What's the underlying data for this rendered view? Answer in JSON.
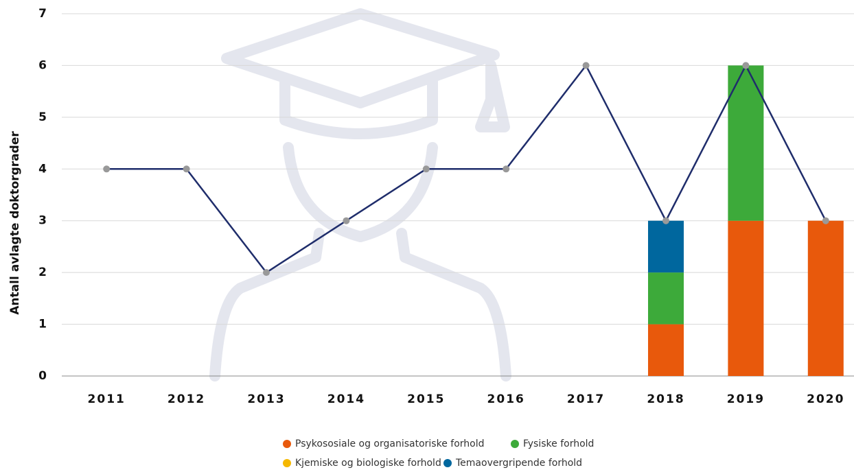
{
  "chart_data": {
    "type": "bar-line",
    "y_label": "Antall avlagte doktorgrader",
    "categories": [
      "2011",
      "2012",
      "2013",
      "2014",
      "2015",
      "2016",
      "2017",
      "2018",
      "2019",
      "2020"
    ],
    "series": [
      {
        "name": "Psykososiale og organisatoriske forhold",
        "color": "#e8590c",
        "values": [
          null,
          null,
          null,
          null,
          null,
          null,
          null,
          1,
          3,
          3
        ]
      },
      {
        "name": "Fysiske forhold",
        "color": "#3daa3a",
        "values": [
          null,
          null,
          null,
          null,
          null,
          null,
          null,
          1,
          3,
          null
        ]
      },
      {
        "name": "Kjemiske og biologiske forhold",
        "color": "#f5b800",
        "values": [
          null,
          null,
          null,
          null,
          null,
          null,
          null,
          null,
          null,
          null
        ]
      },
      {
        "name": "Temaovergripende forhold",
        "color": "#00679e",
        "values": [
          null,
          null,
          null,
          null,
          null,
          null,
          null,
          1,
          null,
          null
        ]
      }
    ],
    "line": {
      "color": "#1f2d6b",
      "marker_color": "#999999",
      "values": [
        4,
        4,
        2,
        3,
        4,
        4,
        6,
        3,
        6,
        3
      ]
    },
    "ylim": [
      0,
      7
    ],
    "yticks": [
      0,
      1,
      2,
      3,
      4,
      5,
      6,
      7
    ],
    "grid": true
  }
}
